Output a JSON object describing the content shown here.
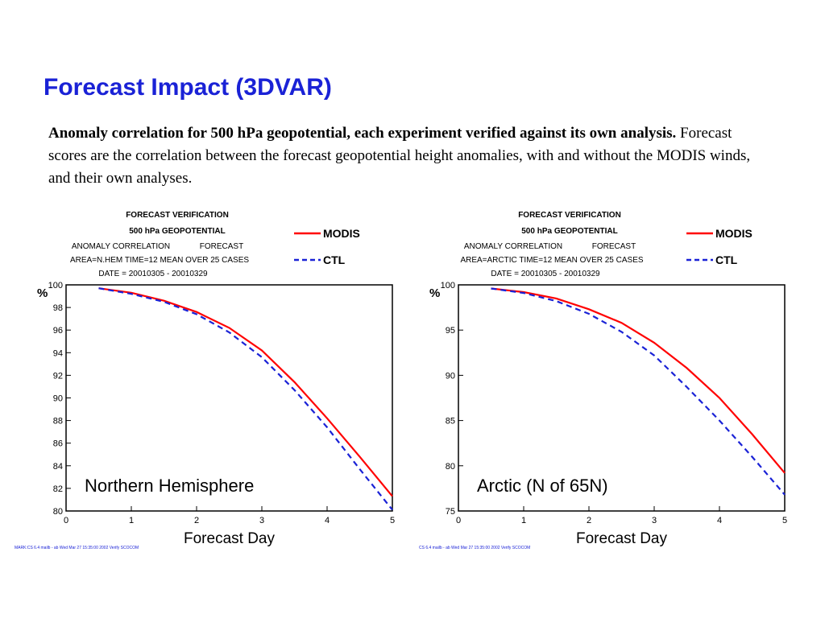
{
  "slide": {
    "title": "Forecast Impact (3DVAR)",
    "caption_bold": "Anomaly correlation for 500 hPa geopotential, each experiment verified against its own analysis.",
    "caption_rest": " Forecast scores are the correlation between the forecast geopotential height anomalies, with and without the MODIS winds, and their own analyses."
  },
  "colors": {
    "title": "#1a22d6",
    "modis": "#ff0000",
    "ctl": "#1a22d6"
  },
  "chart_data": [
    {
      "type": "line",
      "header": {
        "line1": "FORECAST VERIFICATION",
        "line2": "500 hPa GEOPOTENTIAL",
        "line3a": "ANOMALY CORRELATION",
        "line3b": "FORECAST",
        "line4": "AREA=N.HEM    TIME=12    MEAN OVER  25 CASES",
        "line5": "DATE = 20010305 - 20010329"
      },
      "region_label": "Northern Hemisphere",
      "ylabel": "%",
      "xlabel": "Forecast Day",
      "xlim": [
        0,
        5
      ],
      "ylim": [
        80,
        100
      ],
      "xticks": [
        0,
        1,
        2,
        3,
        4,
        5
      ],
      "yticks": [
        80,
        82,
        84,
        86,
        88,
        90,
        92,
        94,
        96,
        98,
        100
      ],
      "series": [
        {
          "name": "MODIS",
          "style": "solid",
          "x": [
            0.5,
            1,
            1.5,
            2,
            2.5,
            3,
            3.5,
            4,
            4.5,
            5
          ],
          "y": [
            99.7,
            99.3,
            98.6,
            97.6,
            96.2,
            94.2,
            91.4,
            88.2,
            84.8,
            81.3
          ]
        },
        {
          "name": "CTL",
          "style": "dashed",
          "x": [
            0.5,
            1,
            1.5,
            2,
            2.5,
            3,
            3.5,
            4,
            4.5,
            5
          ],
          "y": [
            99.7,
            99.2,
            98.5,
            97.4,
            95.8,
            93.6,
            90.7,
            87.4,
            83.7,
            80.1
          ]
        }
      ],
      "footer": "MARK:CS 6.4 mailb - ab Wed Mar 27 15:35:00 2002 Verify SCOCOM"
    },
    {
      "type": "line",
      "header": {
        "line1": "FORECAST VERIFICATION",
        "line2": "500 hPa GEOPOTENTIAL",
        "line3a": "ANOMALY CORRELATION",
        "line3b": "FORECAST",
        "line4": "AREA=ARCTIC    TIME=12    MEAN OVER  25 CASES",
        "line5": "DATE = 20010305 - 20010329"
      },
      "region_label": "Arctic (N of 65N)",
      "ylabel": "%",
      "xlabel": "Forecast Day",
      "xlim": [
        0,
        5
      ],
      "ylim": [
        75,
        100
      ],
      "xticks": [
        0,
        1,
        2,
        3,
        4,
        5
      ],
      "yticks": [
        75,
        80,
        85,
        90,
        95,
        100
      ],
      "series": [
        {
          "name": "MODIS",
          "style": "solid",
          "x": [
            0.5,
            1,
            1.5,
            2,
            2.5,
            3,
            3.5,
            4,
            4.5,
            5
          ],
          "y": [
            99.6,
            99.2,
            98.5,
            97.3,
            95.8,
            93.6,
            90.8,
            87.5,
            83.5,
            79.2
          ]
        },
        {
          "name": "CTL",
          "style": "dashed",
          "x": [
            0.5,
            1,
            1.5,
            2,
            2.5,
            3,
            3.5,
            4,
            4.5,
            5
          ],
          "y": [
            99.6,
            99.1,
            98.2,
            96.8,
            94.8,
            92.2,
            88.7,
            85.0,
            81.0,
            76.8
          ]
        }
      ],
      "footer": "CS 6.4 mailb - ab Wed Mar 27 15:35:00 2002 Verify SCOCOM"
    }
  ]
}
